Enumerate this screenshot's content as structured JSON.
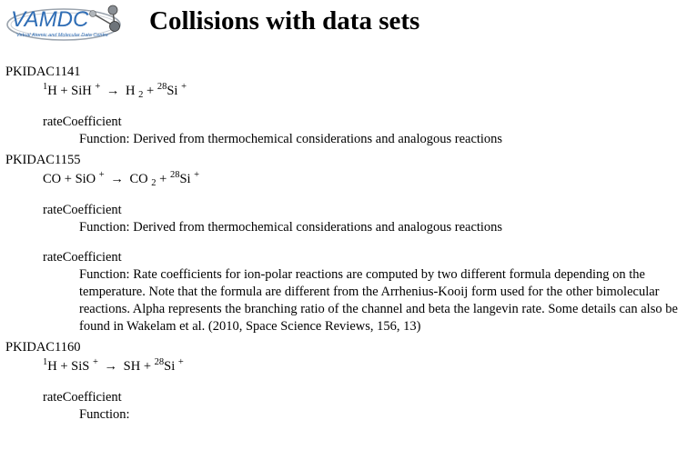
{
  "header": {
    "logo_text": "VAMDC",
    "logo_subtext": "Virtual Atomic and Molecular Data Centre",
    "title": "Collisions with data sets"
  },
  "function_prefix": "Function:",
  "collisions": [
    {
      "id": "PKIDAC1141",
      "reaction": {
        "reactants": [
          {
            "pre_sup": "1",
            "formula": "H",
            "sub": "",
            "charge": ""
          },
          {
            "pre_sup": "",
            "formula": "SiH",
            "sub": "",
            "charge": "+"
          }
        ],
        "arrow": "→",
        "products": [
          {
            "pre_sup": "",
            "formula": "H",
            "sub": "2",
            "charge": ""
          },
          {
            "pre_sup": "28",
            "formula": "Si",
            "sub": "",
            "charge": "+"
          }
        ]
      },
      "datasets": [
        {
          "name": "rateCoefficient",
          "function": "Derived from thermochemical considerations and analogous reactions"
        }
      ]
    },
    {
      "id": "PKIDAC1155",
      "reaction": {
        "reactants": [
          {
            "pre_sup": "",
            "formula": "CO",
            "sub": "",
            "charge": ""
          },
          {
            "pre_sup": "",
            "formula": "SiO",
            "sub": "",
            "charge": "+"
          }
        ],
        "arrow": "→",
        "products": [
          {
            "pre_sup": "",
            "formula": "CO",
            "sub": "2",
            "charge": ""
          },
          {
            "pre_sup": "28",
            "formula": "Si",
            "sub": "",
            "charge": "+"
          }
        ]
      },
      "datasets": [
        {
          "name": "rateCoefficient",
          "function": "Derived from thermochemical considerations and analogous reactions"
        },
        {
          "name": "rateCoefficient",
          "function": "Rate coefficients for ion-polar reactions are computed by two different formula depending on the temperature. Note that the formula are different from the Arrhenius-Kooij form used for the other bimolecular reactions. Alpha represents the branching ratio of the channel and beta the langevin rate. Some details can also be found in Wakelam et al. (2010, Space Science Reviews, 156, 13)"
        }
      ]
    },
    {
      "id": "PKIDAC1160",
      "reaction": {
        "reactants": [
          {
            "pre_sup": "1",
            "formula": "H",
            "sub": "",
            "charge": ""
          },
          {
            "pre_sup": "",
            "formula": "SiS",
            "sub": "",
            "charge": "+"
          }
        ],
        "arrow": "→",
        "products": [
          {
            "pre_sup": "",
            "formula": "SH",
            "sub": "",
            "charge": ""
          },
          {
            "pre_sup": "28",
            "formula": "Si",
            "sub": "",
            "charge": "+"
          }
        ]
      },
      "datasets": [
        {
          "name": "rateCoefficient",
          "function": ""
        }
      ]
    }
  ]
}
